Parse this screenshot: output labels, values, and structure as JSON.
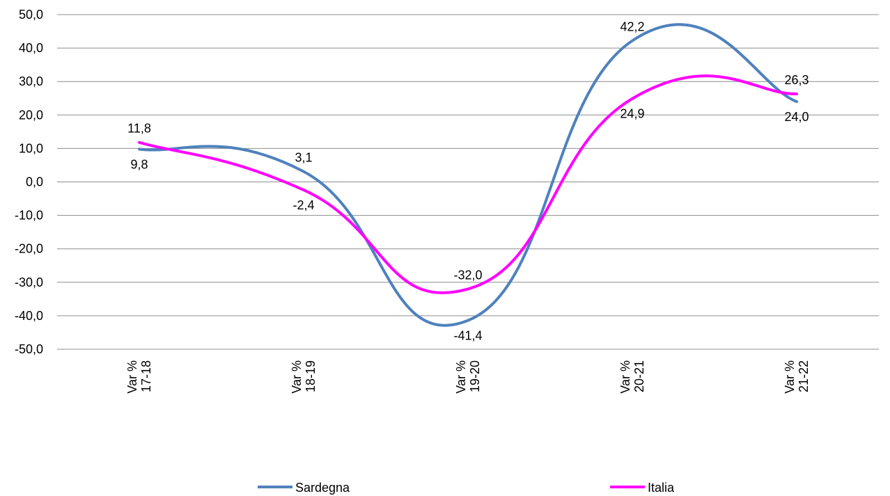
{
  "chart_data": {
    "type": "line",
    "smooth": true,
    "categories": [
      [
        "Var %",
        "17-18"
      ],
      [
        "Var %",
        "18-19"
      ],
      [
        "Var %",
        "19-20"
      ],
      [
        "Var %",
        "20-21"
      ],
      [
        "Var %",
        "21-22"
      ]
    ],
    "series": [
      {
        "name": "Sardegna",
        "color": "#4f81bd",
        "values": [
          9.8,
          3.1,
          -41.4,
          42.2,
          24.0
        ],
        "labels": [
          "9,8",
          "3,1",
          "-41,4",
          "42,2",
          "24,0"
        ],
        "label_position": [
          "below",
          "above",
          "below",
          "above",
          "below"
        ]
      },
      {
        "name": "Italia",
        "color": "#ff00ff",
        "values": [
          11.8,
          -2.4,
          -32.0,
          24.9,
          26.3
        ],
        "labels": [
          "11,8",
          "-2,4",
          "-32,0",
          "24,9",
          "26,3"
        ],
        "label_position": [
          "above",
          "below",
          "above",
          "below",
          "above"
        ]
      }
    ],
    "yticks": [
      50,
      40,
      30,
      20,
      10,
      0,
      -10,
      -20,
      -30,
      -40,
      -50
    ],
    "ytick_labels": [
      "50,0",
      "40,0",
      "30,0",
      "20,0",
      "10,0",
      "0,0",
      "-10,0",
      "-20,0",
      "-30,0",
      "-40,0",
      "-50,0"
    ],
    "ylim": [
      -50,
      50
    ],
    "grid": true,
    "legend_position": "bottom",
    "title": "",
    "xlabel": "",
    "ylabel": ""
  }
}
